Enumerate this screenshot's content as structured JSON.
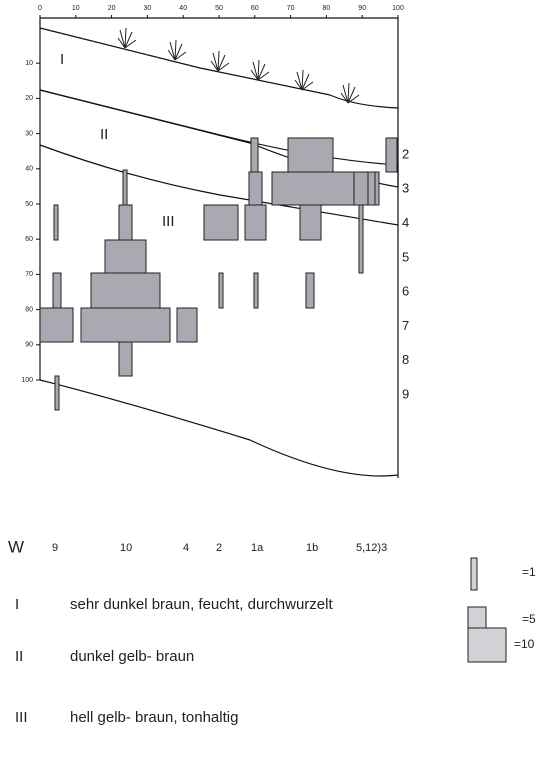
{
  "top_axis": {
    "ticks": [
      0,
      10,
      20,
      30,
      40,
      50,
      60,
      70,
      80,
      90,
      100
    ]
  },
  "left_axis": {
    "ticks": [
      10,
      20,
      30,
      40,
      50,
      60,
      70,
      80,
      90,
      100
    ]
  },
  "horizon_numbers": [
    2,
    3,
    4,
    5,
    6,
    7,
    8,
    9
  ],
  "profile": {
    "horizons": [
      "I",
      "II",
      "III"
    ]
  },
  "samples": {
    "label": "W",
    "items": [
      "9",
      "10",
      "4",
      "2",
      "1a",
      "1b",
      "5,12)3"
    ]
  },
  "legend": [
    "=1",
    "=5",
    "=10"
  ],
  "descriptions": [
    {
      "numeral": "I",
      "text": "sehr dunkel braun, feucht, durchwurzelt"
    },
    {
      "numeral": "II",
      "text": "dunkel gelb- braun"
    },
    {
      "numeral": "III",
      "text": "hell gelb- braun, tonhaltig"
    }
  ]
}
